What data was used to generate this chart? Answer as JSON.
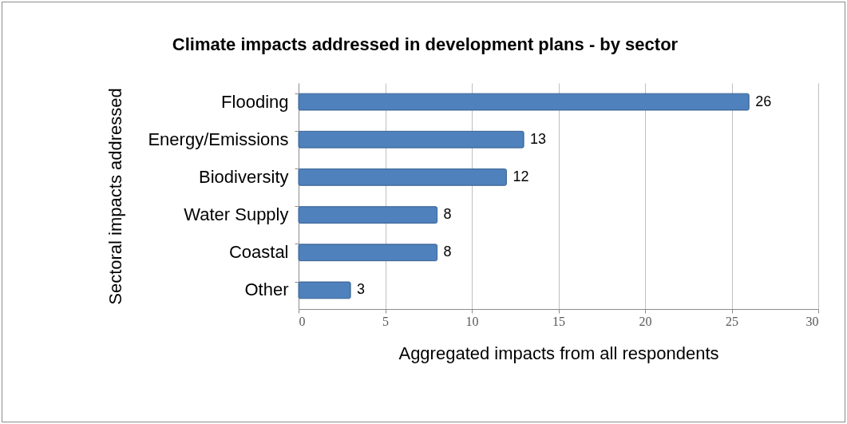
{
  "chart_data": {
    "type": "bar",
    "orientation": "horizontal",
    "title": "Climate impacts addressed in development plans - by sector",
    "xlabel": "Aggregated impacts from all respondents",
    "ylabel": "Sectoral impacts addressed",
    "categories": [
      "Flooding",
      "Energy/Emissions",
      "Biodiversity",
      "Water Supply",
      "Coastal",
      "Other"
    ],
    "values": [
      26,
      13,
      12,
      8,
      8,
      3
    ],
    "color": "#4f81bd",
    "data_labels": true,
    "xlim": [
      0,
      30
    ],
    "xticks": [
      0,
      5,
      10,
      15,
      20,
      25,
      30
    ],
    "grid": "x"
  }
}
